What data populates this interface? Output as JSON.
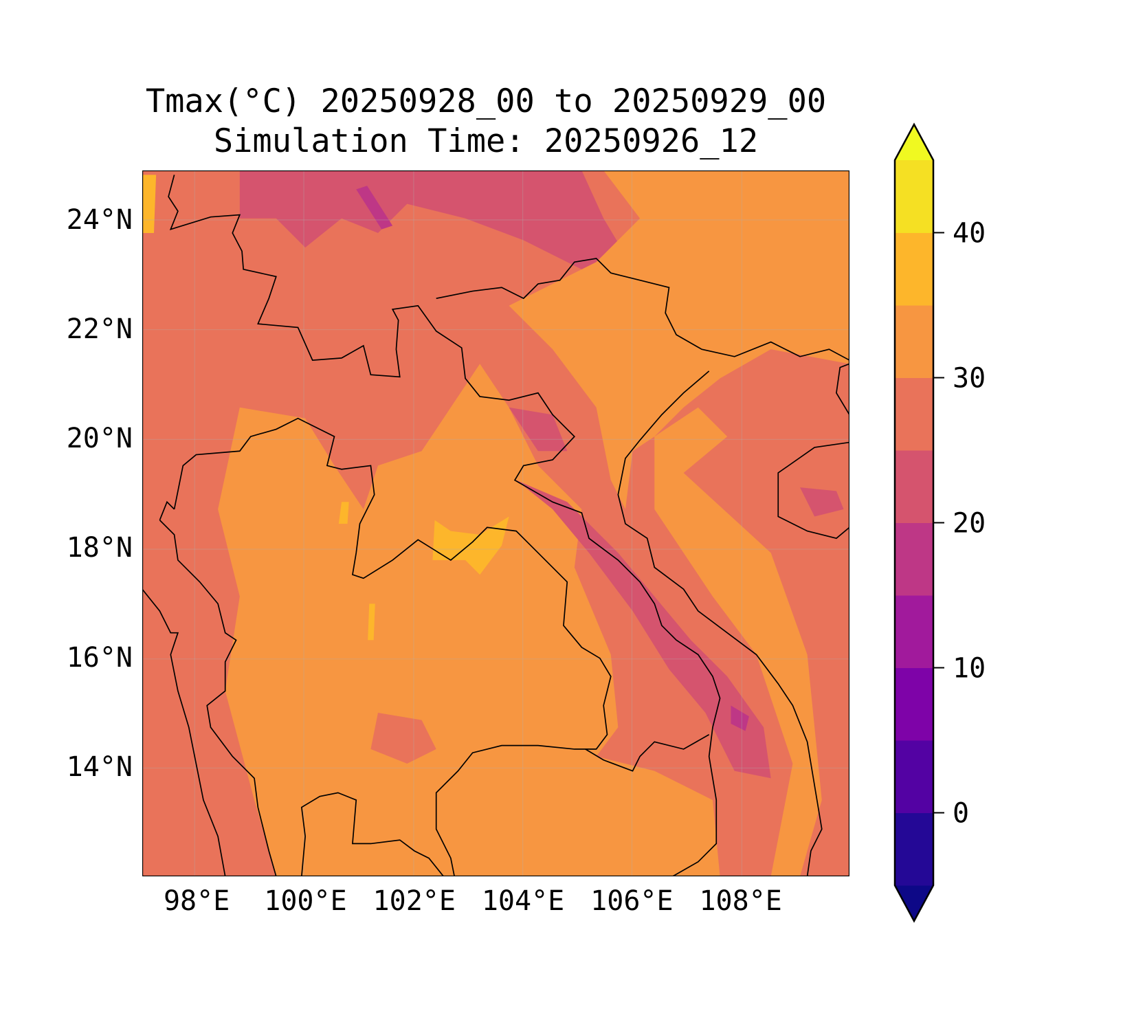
{
  "chart_data": {
    "type": "heatmap",
    "title": "Tmax(°C) 20250928_00 to 20250929_00",
    "subtitle": "Simulation Time: 20250926_12",
    "xlabel": "",
    "ylabel": "",
    "xlim": [
      97.0,
      110.0
    ],
    "ylim": [
      12.0,
      24.9
    ],
    "x_ticks": [
      {
        "value": 98,
        "label": "98°E"
      },
      {
        "value": 100,
        "label": "100°E"
      },
      {
        "value": 102,
        "label": "102°E"
      },
      {
        "value": 104,
        "label": "104°E"
      },
      {
        "value": 106,
        "label": "106°E"
      },
      {
        "value": 108,
        "label": "108°E"
      }
    ],
    "y_ticks": [
      {
        "value": 24,
        "label": "24°N"
      },
      {
        "value": 22,
        "label": "22°N"
      },
      {
        "value": 20,
        "label": "20°N"
      },
      {
        "value": 18,
        "label": "18°N"
      },
      {
        "value": 16,
        "label": "16°N"
      },
      {
        "value": 14,
        "label": "14°N"
      }
    ],
    "grid": true,
    "colorbar": {
      "levels": [
        -5,
        0,
        5,
        10,
        15,
        20,
        25,
        30,
        35,
        40,
        45
      ],
      "extend": "both",
      "colors": [
        "#240896",
        "#5302a3",
        "#7e03a8",
        "#a11a9c",
        "#be3786",
        "#d5546e",
        "#e9735a",
        "#f79641",
        "#fdb62b",
        "#f5e023"
      ],
      "under_color": "#0d0887",
      "over_color": "#f0f921",
      "ticks": [
        {
          "value": 0,
          "label": "0"
        },
        {
          "value": 10,
          "label": "10"
        },
        {
          "value": 20,
          "label": "20"
        },
        {
          "value": 30,
          "label": "30"
        },
        {
          "value": 40,
          "label": "40"
        }
      ]
    },
    "dominant_range": "25–35 °C over land, 20–25 °C in northern highlands and Annamite range, 35–40 °C locally near 18°N 103°E"
  }
}
